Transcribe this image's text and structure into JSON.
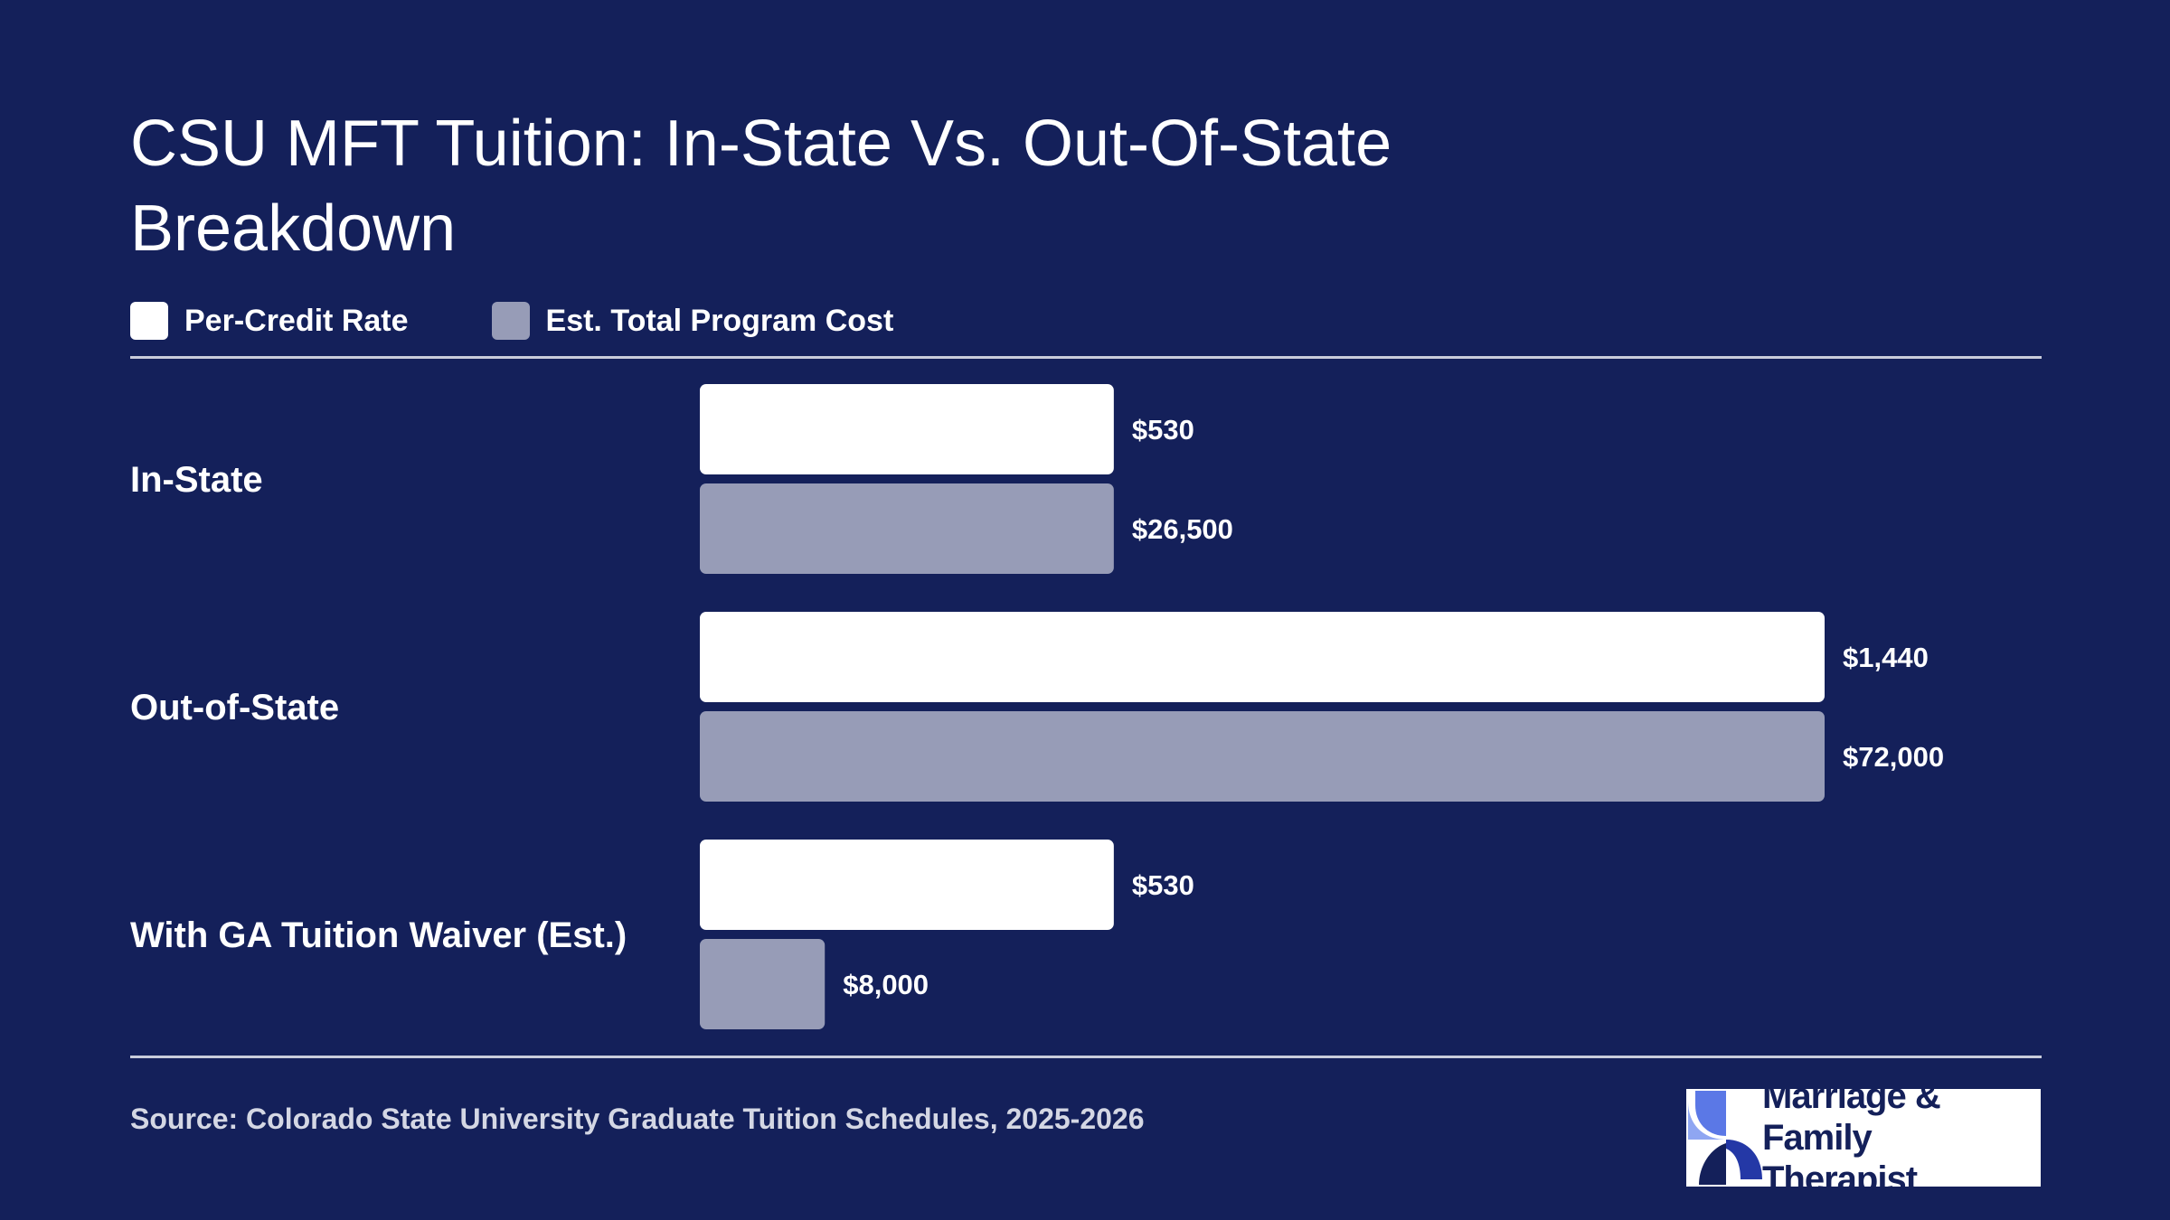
{
  "title": "CSU MFT Tuition: In-State Vs. Out-Of-State Breakdown",
  "legend": [
    {
      "label": "Per-Credit Rate",
      "color": "#ffffff"
    },
    {
      "label": "Est. Total Program Cost",
      "color": "#979cb7"
    }
  ],
  "source": "Source: Colorado State University Graduate Tuition Schedules, 2025-2026",
  "logo": {
    "line1": "Marriage & Family",
    "line2": "Therapist",
    "icon": "mft-logo-icon"
  },
  "chart_data": {
    "type": "bar",
    "orientation": "horizontal",
    "categories": [
      "In-State",
      "Out-of-State",
      "With GA Tuition Waiver (Est.)"
    ],
    "series": [
      {
        "name": "Per-Credit Rate",
        "values": [
          530,
          1440,
          530
        ],
        "labels": [
          "$530",
          "$1,440",
          "$530"
        ],
        "color": "#ffffff"
      },
      {
        "name": "Est. Total Program Cost",
        "values": [
          26500,
          72000,
          8000
        ],
        "labels": [
          "$26,500",
          "$72,000",
          "$8,000"
        ],
        "color": "#979cb7"
      }
    ],
    "grid": false,
    "legend_position": "top-left"
  }
}
